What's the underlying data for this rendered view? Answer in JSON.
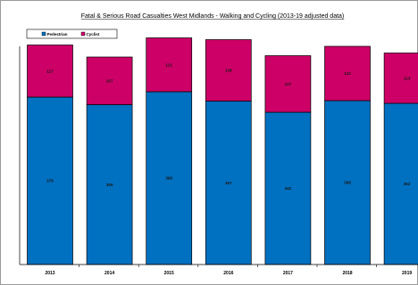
{
  "chart_data": {
    "type": "bar",
    "stacked": true,
    "title": "Fatal & Serious Road Casualties West Midlands - Walking and Cycling (2013-19 adjusted data)",
    "title_underlined": true,
    "categories": [
      "2013",
      "2014",
      "2015",
      "2016",
      "2017",
      "2018",
      "2019"
    ],
    "series": [
      {
        "name": "Pedestrian",
        "color": "#0070c0",
        "values": [
          376,
          359,
          388,
          367,
          342,
          368,
          362
        ]
      },
      {
        "name": "Cyclist",
        "color": "#cc0066",
        "values": [
          117,
          107,
          121,
          138,
          127,
          122,
          113
        ]
      }
    ],
    "ylim": [
      0,
      500
    ],
    "legend": "top-left",
    "grid": false
  }
}
